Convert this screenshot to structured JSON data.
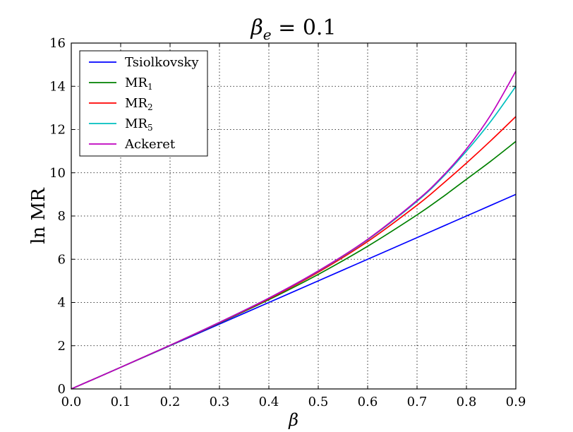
{
  "chart_data": {
    "type": "line",
    "title": "βe = 0.1",
    "title_main": "β",
    "title_sub": "e",
    "title_rest": " = 0.1",
    "xlabel": "β",
    "ylabel": "ln MR",
    "xlim": [
      0.0,
      0.9
    ],
    "ylim": [
      0,
      16
    ],
    "xticks": [
      "0.0",
      "0.1",
      "0.2",
      "0.3",
      "0.4",
      "0.5",
      "0.6",
      "0.7",
      "0.8",
      "0.9"
    ],
    "yticks": [
      "0",
      "2",
      "4",
      "6",
      "8",
      "10",
      "12",
      "14",
      "16"
    ],
    "grid": true,
    "legend_position": "top-left",
    "x": [
      0.0,
      0.1,
      0.2,
      0.3,
      0.4,
      0.5,
      0.6,
      0.7,
      0.75,
      0.8,
      0.85,
      0.9
    ],
    "series": [
      {
        "name": "Tsiolkovsky",
        "label_main": "Tsiolkovsky",
        "label_sub": "",
        "color": "#0000ff",
        "values": [
          0,
          1.0,
          2.0,
          3.0,
          4.0,
          5.0,
          6.0,
          7.0,
          7.5,
          8.0,
          8.5,
          9.0
        ]
      },
      {
        "name": "MR1",
        "label_main": "MR",
        "label_sub": "1",
        "color": "#008000",
        "values": [
          0,
          1.0,
          2.01,
          3.05,
          4.13,
          5.3,
          6.6,
          8.05,
          8.85,
          9.7,
          10.55,
          11.45
        ]
      },
      {
        "name": "MR2",
        "label_main": "MR",
        "label_sub": "2",
        "color": "#ff0000",
        "values": [
          0,
          1.0,
          2.02,
          3.07,
          4.17,
          5.4,
          6.82,
          8.5,
          9.45,
          10.45,
          11.5,
          12.6
        ]
      },
      {
        "name": "MR5",
        "label_main": "MR",
        "label_sub": "5",
        "color": "#00bfbf",
        "values": [
          0,
          1.0,
          2.02,
          3.08,
          4.2,
          5.45,
          6.9,
          8.68,
          9.75,
          11.0,
          12.4,
          14.0
        ]
      },
      {
        "name": "Ackeret",
        "label_main": "Ackeret",
        "label_sub": "",
        "color": "#bf00bf",
        "values": [
          0,
          1.0,
          2.02,
          3.08,
          4.2,
          5.46,
          6.92,
          8.72,
          9.8,
          11.1,
          12.7,
          14.7
        ]
      }
    ]
  }
}
